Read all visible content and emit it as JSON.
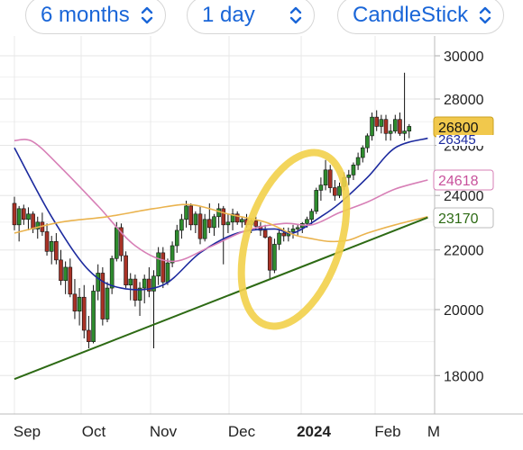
{
  "toolbar": {
    "range": {
      "label": "6 months",
      "icon": "chevron-up-down-icon"
    },
    "interval": {
      "label": "1 day",
      "icon": "chevron-up-down-icon"
    },
    "chart_type": {
      "label": "CandleStick",
      "icon": "chevron-up-down-icon"
    }
  },
  "colors": {
    "accent": "#1a66d8",
    "candle_up": "#2e8b2e",
    "candle_down": "#a93226",
    "sma_short": "#1c2a9e",
    "sma_mid": "#d77fb6",
    "sma_long": "#eab34e",
    "trend_line": "#2d6a14",
    "highlight_circle": "#f2d04a",
    "price_tag": "#f1c84c"
  },
  "chart_data": {
    "type": "candlestick",
    "x_ticks": [
      "Sep",
      "Oct",
      "Nov",
      "Dec",
      "2024",
      "Feb",
      "M"
    ],
    "y_ticks": [
      18000,
      20000,
      22000,
      24000,
      26000,
      28000,
      30000
    ],
    "ylim": [
      17000,
      30500
    ],
    "y_scale": "log",
    "grid": true,
    "candles_start": "2023-08-28",
    "candles": [
      [
        23700,
        23950,
        22700,
        22900
      ],
      [
        22900,
        23600,
        22300,
        23500
      ],
      [
        23500,
        23650,
        22900,
        23100
      ],
      [
        23100,
        23550,
        22700,
        23300
      ],
      [
        23300,
        23400,
        22600,
        22750
      ],
      [
        22750,
        23200,
        22400,
        23000
      ],
      [
        23000,
        23350,
        22500,
        22650
      ],
      [
        22650,
        22950,
        21800,
        21950
      ],
      [
        21950,
        22500,
        21500,
        22300
      ],
      [
        22300,
        22600,
        21500,
        21650
      ],
      [
        21650,
        22000,
        20800,
        20950
      ],
      [
        20950,
        21600,
        20500,
        21400
      ],
      [
        21400,
        21700,
        20400,
        20500
      ],
      [
        20500,
        21000,
        19700,
        19950
      ],
      [
        19950,
        20700,
        19500,
        20400
      ],
      [
        20400,
        20800,
        19100,
        19350
      ],
      [
        19350,
        19800,
        18800,
        19000
      ],
      [
        19000,
        20800,
        18950,
        20600
      ],
      [
        20600,
        21500,
        20300,
        21200
      ],
      [
        21200,
        21400,
        19500,
        19700
      ],
      [
        19700,
        20900,
        19600,
        20700
      ],
      [
        20700,
        21800,
        20500,
        21700
      ],
      [
        21700,
        23000,
        21600,
        22800
      ],
      [
        22800,
        22950,
        21600,
        21800
      ],
      [
        21800,
        21950,
        20700,
        20800
      ],
      [
        20800,
        21200,
        20300,
        21000
      ],
      [
        21000,
        21150,
        20100,
        20300
      ],
      [
        20300,
        20900,
        19800,
        20700
      ],
      [
        20700,
        21150,
        20200,
        21000
      ],
      [
        21000,
        21400,
        20400,
        20600
      ],
      [
        20600,
        21300,
        18800,
        21100
      ],
      [
        21100,
        22100,
        20800,
        21900
      ],
      [
        21900,
        22100,
        20700,
        20900
      ],
      [
        20900,
        21700,
        20800,
        21550
      ],
      [
        21550,
        22300,
        21400,
        22150
      ],
      [
        22150,
        22900,
        21900,
        22700
      ],
      [
        22700,
        23300,
        22400,
        23100
      ],
      [
        23100,
        23800,
        22800,
        23600
      ],
      [
        23600,
        23700,
        22700,
        22900
      ],
      [
        22900,
        23400,
        22600,
        23300
      ],
      [
        23300,
        23600,
        22200,
        22400
      ],
      [
        22400,
        23300,
        22300,
        23100
      ],
      [
        23100,
        23700,
        22600,
        22800
      ],
      [
        22800,
        23300,
        22500,
        23200
      ],
      [
        23200,
        23700,
        22800,
        23500
      ],
      [
        23500,
        23600,
        21500,
        22900
      ],
      [
        22900,
        23300,
        22600,
        23000
      ],
      [
        23000,
        23500,
        22700,
        23300
      ],
      [
        23300,
        23400,
        22900,
        23000
      ],
      [
        23000,
        23200,
        22800,
        23100
      ],
      [
        23100,
        23300,
        22800,
        22900
      ],
      [
        22900,
        23100,
        22600,
        23050
      ],
      [
        23050,
        23200,
        22700,
        22850
      ],
      [
        22850,
        23000,
        22500,
        22700
      ],
      [
        22700,
        22900,
        22400,
        22450
      ],
      [
        22450,
        22500,
        21000,
        21300
      ],
      [
        21300,
        22400,
        21200,
        22200
      ],
      [
        22200,
        22700,
        22000,
        22600
      ],
      [
        22600,
        22800,
        22300,
        22500
      ],
      [
        22500,
        22800,
        22300,
        22650
      ],
      [
        22650,
        22900,
        22400,
        22750
      ],
      [
        22750,
        22900,
        22500,
        22800
      ],
      [
        22800,
        23000,
        22600,
        22950
      ],
      [
        22950,
        23200,
        22800,
        23100
      ],
      [
        23100,
        23500,
        22900,
        23400
      ],
      [
        23400,
        24300,
        23300,
        24200
      ],
      [
        24200,
        24700,
        23800,
        24400
      ],
      [
        24400,
        25400,
        24200,
        25000
      ],
      [
        25000,
        25200,
        24100,
        24300
      ],
      [
        24300,
        24600,
        23800,
        24000
      ],
      [
        24000,
        24500,
        23900,
        24350
      ],
      [
        24350,
        24900,
        24200,
        24700
      ],
      [
        24700,
        25000,
        24400,
        24800
      ],
      [
        24800,
        25300,
        24600,
        25200
      ],
      [
        25200,
        25700,
        25000,
        25500
      ],
      [
        25500,
        26000,
        25300,
        25900
      ],
      [
        25900,
        26500,
        25700,
        26400
      ],
      [
        26400,
        27400,
        26200,
        27200
      ],
      [
        27200,
        27500,
        26600,
        26800
      ],
      [
        26800,
        27300,
        26500,
        27100
      ],
      [
        27100,
        27300,
        26200,
        26500
      ],
      [
        26500,
        26900,
        26200,
        26600
      ],
      [
        26600,
        27300,
        26500,
        27100
      ],
      [
        27100,
        27400,
        26400,
        26500
      ],
      [
        26500,
        29200,
        26200,
        26600
      ],
      [
        26600,
        26900,
        26300,
        26800
      ]
    ],
    "series": [
      {
        "name": "",
        "color": "#1c2a9e",
        "values": [
          [
            0,
            25900
          ],
          [
            8,
            23200
          ],
          [
            16,
            21300
          ],
          [
            23,
            20700
          ],
          [
            32,
            20800
          ],
          [
            40,
            21900
          ],
          [
            48,
            22600
          ],
          [
            56,
            22750
          ],
          [
            60,
            22600
          ],
          [
            66,
            23200
          ],
          [
            70,
            23700
          ],
          [
            76,
            24700
          ],
          [
            82,
            25900
          ],
          [
            89,
            26300
          ]
        ]
      },
      {
        "name": "",
        "color": "#d77fb6",
        "values": [
          [
            0,
            26200
          ],
          [
            4,
            26150
          ],
          [
            10,
            25100
          ],
          [
            18,
            23600
          ],
          [
            26,
            22150
          ],
          [
            34,
            21600
          ],
          [
            42,
            22100
          ],
          [
            50,
            22700
          ],
          [
            58,
            22950
          ],
          [
            64,
            22900
          ],
          [
            70,
            23350
          ],
          [
            76,
            23750
          ],
          [
            82,
            24250
          ],
          [
            89,
            24600
          ]
        ]
      },
      {
        "name": "",
        "color": "#eab34e",
        "values": [
          [
            0,
            22600
          ],
          [
            10,
            23000
          ],
          [
            20,
            23200
          ],
          [
            30,
            23500
          ],
          [
            38,
            23650
          ],
          [
            46,
            23300
          ],
          [
            54,
            23000
          ],
          [
            60,
            22550
          ],
          [
            64,
            22400
          ],
          [
            68,
            22300
          ],
          [
            72,
            22350
          ],
          [
            76,
            22600
          ],
          [
            82,
            22900
          ],
          [
            89,
            23200
          ]
        ]
      },
      {
        "name": "",
        "color": "#2d6a14",
        "values": [
          [
            0,
            17900
          ],
          [
            89,
            23170
          ]
        ]
      }
    ],
    "price_tags": [
      {
        "value": "26800",
        "style": "current"
      },
      {
        "value": "26345",
        "style": "blue"
      },
      {
        "value": "24618",
        "style": "pink"
      },
      {
        "value": "23170",
        "style": "green"
      }
    ]
  }
}
